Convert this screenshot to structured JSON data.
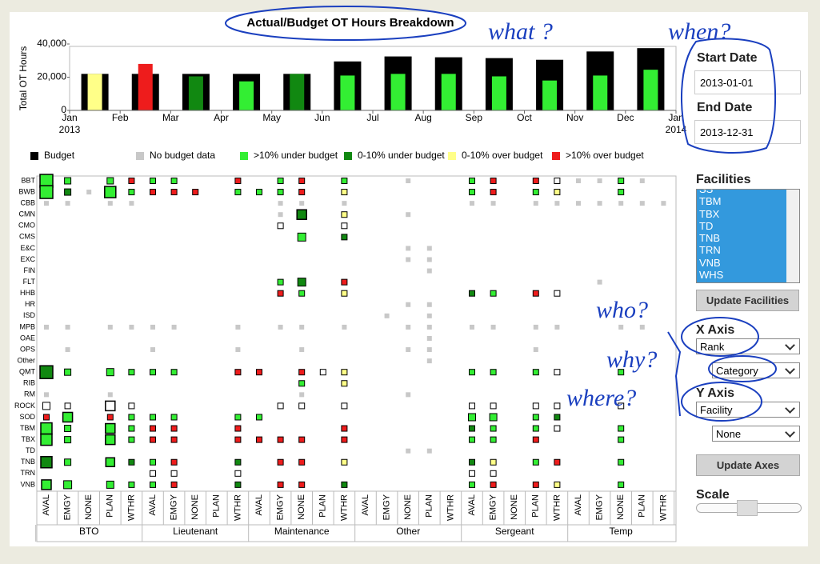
{
  "chart_data": {
    "type": "bar",
    "title": "Actual/Budget OT Hours Breakdown",
    "y_label": "Total OT Hours",
    "x": [
      "2013-01",
      "2013-02",
      "2013-03",
      "2013-04",
      "2013-05",
      "2013-06",
      "2013-07",
      "2013-08",
      "2013-09",
      "2013-10",
      "2013-11",
      "2013-12"
    ],
    "xlim": [
      "2013-01",
      "2014-01"
    ],
    "xticks": [
      {
        "value": "2013-01",
        "label": "Jan 2013"
      },
      {
        "value": "2013-02",
        "label": "Feb"
      },
      {
        "value": "2013-03",
        "label": "Mar"
      },
      {
        "value": "2013-04",
        "label": "Apr"
      },
      {
        "value": "2013-05",
        "label": "May"
      },
      {
        "value": "2013-06",
        "label": "Jun"
      },
      {
        "value": "2013-07",
        "label": "Jul"
      },
      {
        "value": "2013-08",
        "label": "Aug"
      },
      {
        "value": "2013-09",
        "label": "Sep"
      },
      {
        "value": "2013-10",
        "label": "Oct"
      },
      {
        "value": "2013-11",
        "label": "Nov"
      },
      {
        "value": "2013-12",
        "label": "Dec"
      },
      {
        "value": "2014-01",
        "label": "Jan 2014"
      }
    ],
    "ylim": [
      0,
      40000
    ],
    "yticks": [
      0,
      {
        "value": 20000,
        "label": "20,000"
      },
      {
        "value": 40000,
        "label": "40,000"
      }
    ],
    "series": [
      {
        "color": "#000000",
        "values": [
          22000,
          22000,
          22000,
          22000,
          22000,
          29500,
          32500,
          32000,
          31500,
          30500,
          35500,
          37500
        ]
      },
      {
        "colors": [
          "#ffff88",
          "#ee1c1c",
          "#118811",
          "#33ee33",
          "#118811",
          "#33ee33",
          "#33ee33",
          "#33ee33",
          "#33ee33",
          "#33ee33",
          "#33ee33",
          "#33ee33"
        ],
        "values": [
          22000,
          28000,
          20500,
          17500,
          22000,
          21000,
          22000,
          22000,
          20500,
          18000,
          21000,
          24500
        ]
      }
    ],
    "legend": [
      {
        "label": "Budget",
        "color": "#000000"
      },
      {
        "label": "No budget data",
        "color": "#c8c8c8"
      },
      {
        "label": ">10% under budget",
        "color": "#33ee33"
      },
      {
        "label": "0-10% under budget",
        "color": "#118811"
      },
      {
        "label": "0-10% over budget",
        "color": "#ffff88"
      },
      {
        "label": ">10% over budget",
        "color": "#ee1c1c"
      }
    ]
  },
  "matrix": {
    "rows": [
      "BBT",
      "BWB",
      "CBB",
      "CMN",
      "CMO",
      "CMS",
      "E&C",
      "EXC",
      "FIN",
      "FLT",
      "HHB",
      "HR",
      "ISD",
      "MPB",
      "OAE",
      "OPS",
      "Other",
      "QMT",
      "RIB",
      "RM",
      "ROCK",
      "SOD",
      "TBM",
      "TBX",
      "TD",
      "TNB",
      "TRN",
      "VNB"
    ],
    "groups": [
      "BTO",
      "Lieutenant",
      "Maintenance",
      "Other",
      "Sergeant",
      "Temp"
    ],
    "categories": [
      "AVAL",
      "EMGY",
      "NONE",
      "PLAN",
      "WTHR"
    ],
    "status_colors": {
      "n": "#c8c8c8",
      "g": "#33ee33",
      "dg": "#118811",
      "y": "#ffff88",
      "r": "#ee1c1c",
      "w": "#ffffff"
    },
    "cells": [
      [
        0,
        0,
        "g",
        16
      ],
      [
        0,
        1,
        "g",
        8
      ],
      [
        0,
        3,
        "g",
        8
      ],
      [
        0,
        4,
        "r",
        7
      ],
      [
        0,
        5,
        "g",
        7
      ],
      [
        0,
        6,
        "g",
        7
      ],
      [
        0,
        9,
        "r",
        7
      ],
      [
        0,
        11,
        "g",
        7
      ],
      [
        0,
        12,
        "r",
        7
      ],
      [
        0,
        14,
        "g",
        7
      ],
      [
        0,
        17,
        "n",
        6
      ],
      [
        0,
        20,
        "g",
        7
      ],
      [
        0,
        21,
        "r",
        7
      ],
      [
        0,
        23,
        "r",
        7
      ],
      [
        0,
        24,
        "w",
        7
      ],
      [
        0,
        25,
        "n",
        6
      ],
      [
        0,
        26,
        "n",
        6
      ],
      [
        0,
        27,
        "g",
        7
      ],
      [
        0,
        28,
        "n",
        6
      ],
      [
        1,
        0,
        "g",
        16
      ],
      [
        1,
        1,
        "dg",
        8
      ],
      [
        1,
        2,
        "n",
        6
      ],
      [
        1,
        3,
        "g",
        14
      ],
      [
        1,
        4,
        "g",
        7
      ],
      [
        1,
        5,
        "r",
        7
      ],
      [
        1,
        6,
        "r",
        7
      ],
      [
        1,
        7,
        "r",
        7
      ],
      [
        1,
        9,
        "g",
        7
      ],
      [
        1,
        10,
        "g",
        7
      ],
      [
        1,
        11,
        "g",
        7
      ],
      [
        1,
        12,
        "r",
        7
      ],
      [
        1,
        14,
        "y",
        7
      ],
      [
        1,
        20,
        "g",
        7
      ],
      [
        1,
        21,
        "r",
        7
      ],
      [
        1,
        23,
        "g",
        7
      ],
      [
        1,
        24,
        "y",
        7
      ],
      [
        1,
        27,
        "g",
        7
      ],
      [
        2,
        0,
        "n",
        6
      ],
      [
        2,
        1,
        "n",
        6
      ],
      [
        2,
        3,
        "n",
        6
      ],
      [
        2,
        4,
        "n",
        6
      ],
      [
        2,
        11,
        "n",
        6
      ],
      [
        2,
        12,
        "n",
        6
      ],
      [
        2,
        14,
        "n",
        6
      ],
      [
        2,
        20,
        "n",
        6
      ],
      [
        2,
        21,
        "n",
        6
      ],
      [
        2,
        23,
        "n",
        6
      ],
      [
        2,
        24,
        "n",
        6
      ],
      [
        2,
        25,
        "n",
        6
      ],
      [
        2,
        26,
        "n",
        6
      ],
      [
        2,
        27,
        "n",
        6
      ],
      [
        2,
        28,
        "n",
        6
      ],
      [
        2,
        29,
        "n",
        6
      ],
      [
        3,
        11,
        "n",
        6
      ],
      [
        3,
        12,
        "dg",
        12
      ],
      [
        3,
        14,
        "y",
        7
      ],
      [
        3,
        17,
        "n",
        6
      ],
      [
        4,
        11,
        "w",
        7
      ],
      [
        4,
        14,
        "w",
        7
      ],
      [
        5,
        12,
        "g",
        10
      ],
      [
        5,
        14,
        "dg",
        7
      ],
      [
        6,
        17,
        "n",
        6
      ],
      [
        6,
        18,
        "n",
        6
      ],
      [
        7,
        17,
        "n",
        6
      ],
      [
        7,
        18,
        "n",
        6
      ],
      [
        8,
        18,
        "n",
        6
      ],
      [
        9,
        11,
        "g",
        7
      ],
      [
        9,
        12,
        "dg",
        10
      ],
      [
        9,
        14,
        "r",
        7
      ],
      [
        9,
        26,
        "n",
        6
      ],
      [
        10,
        11,
        "r",
        7
      ],
      [
        10,
        12,
        "g",
        7
      ],
      [
        10,
        14,
        "y",
        7
      ],
      [
        10,
        20,
        "dg",
        7
      ],
      [
        10,
        21,
        "g",
        7
      ],
      [
        10,
        23,
        "r",
        7
      ],
      [
        10,
        24,
        "w",
        7
      ],
      [
        11,
        17,
        "n",
        6
      ],
      [
        11,
        18,
        "n",
        6
      ],
      [
        12,
        16,
        "n",
        6
      ],
      [
        12,
        18,
        "n",
        6
      ],
      [
        13,
        0,
        "n",
        6
      ],
      [
        13,
        1,
        "n",
        6
      ],
      [
        13,
        3,
        "n",
        6
      ],
      [
        13,
        4,
        "n",
        6
      ],
      [
        13,
        5,
        "n",
        6
      ],
      [
        13,
        6,
        "n",
        6
      ],
      [
        13,
        9,
        "n",
        6
      ],
      [
        13,
        11,
        "n",
        6
      ],
      [
        13,
        12,
        "n",
        6
      ],
      [
        13,
        14,
        "n",
        6
      ],
      [
        13,
        17,
        "n",
        6
      ],
      [
        13,
        18,
        "n",
        6
      ],
      [
        13,
        20,
        "n",
        6
      ],
      [
        13,
        21,
        "n",
        6
      ],
      [
        13,
        23,
        "n",
        6
      ],
      [
        13,
        24,
        "n",
        6
      ],
      [
        13,
        27,
        "n",
        6
      ],
      [
        13,
        28,
        "n",
        6
      ],
      [
        14,
        18,
        "n",
        6
      ],
      [
        15,
        1,
        "n",
        6
      ],
      [
        15,
        5,
        "n",
        6
      ],
      [
        15,
        9,
        "n",
        6
      ],
      [
        15,
        12,
        "n",
        6
      ],
      [
        15,
        17,
        "n",
        6
      ],
      [
        15,
        18,
        "n",
        6
      ],
      [
        15,
        23,
        "n",
        6
      ],
      [
        16,
        18,
        "n",
        6
      ],
      [
        17,
        0,
        "dg",
        16
      ],
      [
        17,
        1,
        "g",
        8
      ],
      [
        17,
        3,
        "g",
        9
      ],
      [
        17,
        4,
        "g",
        7
      ],
      [
        17,
        5,
        "g",
        7
      ],
      [
        17,
        6,
        "g",
        7
      ],
      [
        17,
        9,
        "r",
        7
      ],
      [
        17,
        10,
        "r",
        7
      ],
      [
        17,
        12,
        "r",
        7
      ],
      [
        17,
        13,
        "w",
        7
      ],
      [
        17,
        14,
        "y",
        7
      ],
      [
        17,
        20,
        "g",
        7
      ],
      [
        17,
        21,
        "g",
        7
      ],
      [
        17,
        23,
        "g",
        7
      ],
      [
        17,
        24,
        "w",
        7
      ],
      [
        17,
        27,
        "g",
        7
      ],
      [
        18,
        12,
        "g",
        7
      ],
      [
        18,
        14,
        "y",
        7
      ],
      [
        19,
        0,
        "n",
        6
      ],
      [
        19,
        3,
        "n",
        6
      ],
      [
        19,
        12,
        "n",
        6
      ],
      [
        19,
        17,
        "n",
        6
      ],
      [
        20,
        0,
        "w",
        9
      ],
      [
        20,
        1,
        "w",
        7
      ],
      [
        20,
        3,
        "w",
        12
      ],
      [
        20,
        4,
        "w",
        7
      ],
      [
        20,
        11,
        "w",
        7
      ],
      [
        20,
        12,
        "w",
        7
      ],
      [
        20,
        14,
        "w",
        7
      ],
      [
        20,
        20,
        "w",
        7
      ],
      [
        20,
        21,
        "w",
        7
      ],
      [
        20,
        23,
        "w",
        7
      ],
      [
        20,
        24,
        "w",
        7
      ],
      [
        20,
        27,
        "w",
        7
      ],
      [
        21,
        0,
        "r",
        7
      ],
      [
        21,
        1,
        "g",
        12
      ],
      [
        21,
        3,
        "r",
        7
      ],
      [
        21,
        4,
        "g",
        7
      ],
      [
        21,
        5,
        "g",
        7
      ],
      [
        21,
        6,
        "g",
        7
      ],
      [
        21,
        9,
        "g",
        7
      ],
      [
        21,
        10,
        "g",
        7
      ],
      [
        21,
        20,
        "g",
        9
      ],
      [
        21,
        21,
        "g",
        9
      ],
      [
        21,
        23,
        "g",
        7
      ],
      [
        21,
        24,
        "dg",
        7
      ],
      [
        22,
        0,
        "g",
        14
      ],
      [
        22,
        1,
        "g",
        8
      ],
      [
        22,
        3,
        "g",
        12
      ],
      [
        22,
        4,
        "g",
        7
      ],
      [
        22,
        5,
        "r",
        7
      ],
      [
        22,
        6,
        "r",
        7
      ],
      [
        22,
        9,
        "r",
        7
      ],
      [
        22,
        14,
        "r",
        7
      ],
      [
        22,
        20,
        "dg",
        7
      ],
      [
        22,
        21,
        "g",
        7
      ],
      [
        22,
        23,
        "g",
        7
      ],
      [
        22,
        24,
        "w",
        7
      ],
      [
        22,
        27,
        "g",
        7
      ],
      [
        23,
        0,
        "g",
        14
      ],
      [
        23,
        1,
        "g",
        8
      ],
      [
        23,
        3,
        "g",
        12
      ],
      [
        23,
        4,
        "g",
        7
      ],
      [
        23,
        5,
        "r",
        7
      ],
      [
        23,
        6,
        "r",
        7
      ],
      [
        23,
        9,
        "r",
        7
      ],
      [
        23,
        10,
        "r",
        7
      ],
      [
        23,
        11,
        "r",
        7
      ],
      [
        23,
        12,
        "r",
        7
      ],
      [
        23,
        14,
        "r",
        7
      ],
      [
        23,
        20,
        "g",
        7
      ],
      [
        23,
        21,
        "g",
        7
      ],
      [
        23,
        23,
        "r",
        7
      ],
      [
        23,
        27,
        "g",
        7
      ],
      [
        24,
        17,
        "n",
        6
      ],
      [
        24,
        18,
        "n",
        6
      ],
      [
        25,
        0,
        "dg",
        14
      ],
      [
        25,
        1,
        "g",
        8
      ],
      [
        25,
        3,
        "g",
        11
      ],
      [
        25,
        4,
        "dg",
        7
      ],
      [
        25,
        5,
        "g",
        7
      ],
      [
        25,
        6,
        "r",
        7
      ],
      [
        25,
        9,
        "dg",
        7
      ],
      [
        25,
        11,
        "r",
        7
      ],
      [
        25,
        12,
        "r",
        7
      ],
      [
        25,
        14,
        "y",
        7
      ],
      [
        25,
        20,
        "dg",
        7
      ],
      [
        25,
        21,
        "y",
        7
      ],
      [
        25,
        23,
        "g",
        7
      ],
      [
        25,
        24,
        "r",
        7
      ],
      [
        25,
        27,
        "g",
        7
      ],
      [
        26,
        5,
        "w",
        7
      ],
      [
        26,
        6,
        "w",
        7
      ],
      [
        26,
        9,
        "w",
        7
      ],
      [
        26,
        20,
        "w",
        7
      ],
      [
        26,
        21,
        "w",
        7
      ],
      [
        27,
        0,
        "g",
        12
      ],
      [
        27,
        1,
        "g",
        10
      ],
      [
        27,
        3,
        "g",
        9
      ],
      [
        27,
        4,
        "g",
        7
      ],
      [
        27,
        5,
        "g",
        7
      ],
      [
        27,
        6,
        "r",
        7
      ],
      [
        27,
        9,
        "dg",
        7
      ],
      [
        27,
        11,
        "r",
        7
      ],
      [
        27,
        12,
        "r",
        7
      ],
      [
        27,
        14,
        "dg",
        7
      ],
      [
        27,
        20,
        "g",
        7
      ],
      [
        27,
        21,
        "r",
        7
      ],
      [
        27,
        23,
        "r",
        7
      ],
      [
        27,
        24,
        "y",
        7
      ],
      [
        27,
        27,
        "g",
        7
      ]
    ]
  },
  "controls": {
    "start_date_label": "Start Date",
    "start_date": "2013-01-01",
    "end_date_label": "End Date",
    "end_date": "2013-12-31",
    "facilities_label": "Facilities",
    "facilities": [
      "SS",
      "TBM",
      "TBX",
      "TD",
      "TNB",
      "TRN",
      "VNB",
      "WHS"
    ],
    "update_facilities": "Update Facilities",
    "x_axis_label": "X Axis",
    "x_axis": "Rank",
    "x_axis_2": "Category",
    "y_axis_label": "Y Axis",
    "y_axis": "Facility",
    "y_axis_2": "None",
    "update_axes": "Update Axes",
    "scale_label": "Scale"
  },
  "annotations": [
    "what ?",
    "when?",
    "who?",
    "why?",
    "where?"
  ]
}
